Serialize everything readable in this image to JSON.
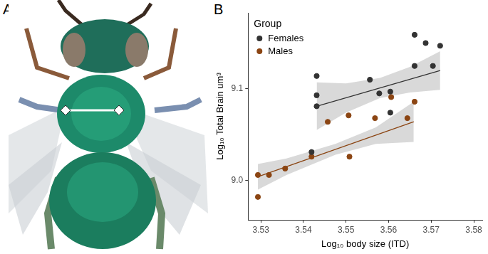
{
  "panel_labels": [
    "A",
    "B"
  ],
  "chart_data": {
    "type": "scatter",
    "x_label": "Log₁₀ body size (ITD)",
    "y_label": "Log₁₀ Total Brain um³",
    "legend_title": "Group",
    "legend": "top-left",
    "grid": false,
    "marker": "circle",
    "xlim": [
      3.527,
      3.582
    ],
    "xticks": [
      3.53,
      3.54,
      3.55,
      3.56,
      3.57,
      3.58
    ],
    "ylim": [
      8.957,
      9.183
    ],
    "yticks": [
      {
        "value": 9,
        "label": "9.0"
      },
      9.1
    ],
    "series": [
      {
        "name": "Females",
        "color": "#333333",
        "x": [
          3.5431,
          3.5431,
          3.5431,
          3.5419,
          3.5556,
          3.5578,
          3.5604,
          3.5604,
          3.5661,
          3.5687,
          3.5661,
          3.5704,
          3.5721
        ],
        "values": [
          9.114,
          9.093,
          9.081,
          9.031,
          9.11,
          9.095,
          9.097,
          9.074,
          9.159,
          9.15,
          9.125,
          9.125,
          9.147
        ],
        "fit": {
          "x": [
            3.5431,
            3.5721
          ],
          "values": [
            9.081,
            9.12
          ]
        },
        "band": {
          "x": [
            3.5431,
            3.55,
            3.558,
            3.565,
            3.5721
          ],
          "lower": [
            9.055,
            9.074,
            9.09,
            9.096,
            9.099
          ],
          "upper": [
            9.107,
            9.106,
            9.112,
            9.124,
            9.141
          ]
        }
      },
      {
        "name": "Males",
        "color": "#8b4513",
        "x": [
          3.5293,
          3.5293,
          3.5319,
          3.5357,
          3.5419,
          3.5457,
          3.5506,
          3.5508,
          3.5568,
          3.5606,
          3.5644,
          3.5661
        ],
        "values": [
          9.006,
          8.982,
          9.006,
          9.013,
          9.026,
          9.064,
          9.071,
          9.026,
          9.068,
          9.091,
          9.068,
          9.086
        ],
        "fit": {
          "x": [
            3.5293,
            3.5659
          ],
          "values": [
            9.004,
            9.064
          ]
        },
        "band": {
          "x": [
            3.5293,
            3.536,
            3.5475,
            3.557,
            3.5659
          ],
          "lower": [
            8.99,
            9.006,
            9.028,
            9.04,
            9.042
          ],
          "upper": [
            9.018,
            9.024,
            9.04,
            9.058,
            9.086
          ]
        }
      }
    ]
  }
}
